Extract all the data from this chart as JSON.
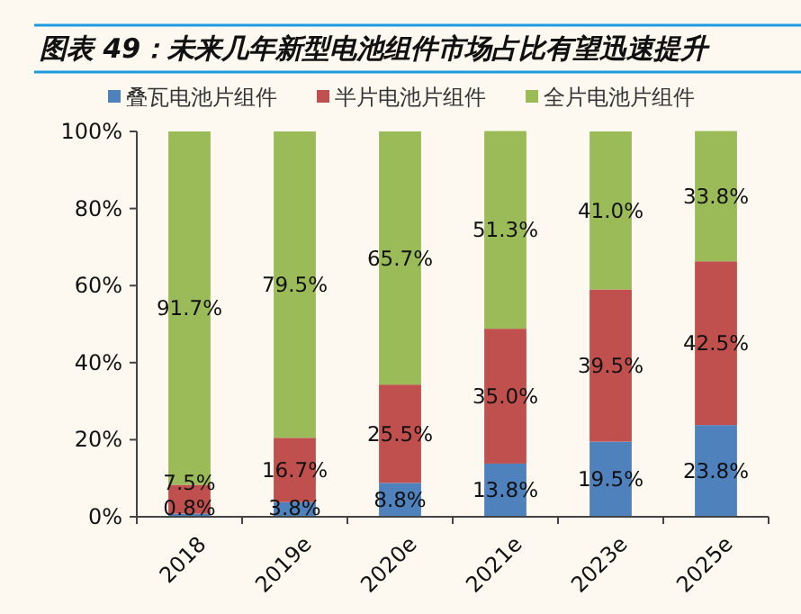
{
  "chart_data": {
    "type": "bar",
    "stacked": true,
    "title": "图表 49：未来几年新型电池组件市场占比有望迅速提升",
    "categories": [
      "2018",
      "2019e",
      "2020e",
      "2021e",
      "2023e",
      "2025e"
    ],
    "series": [
      {
        "name": "叠瓦电池片组件",
        "color": "#4f81bd",
        "values": [
          0.8,
          3.8,
          8.8,
          13.8,
          19.5,
          23.8
        ],
        "value_labels": [
          "0.8%",
          "3.8%",
          "8.8%",
          "13.8%",
          "19.5%",
          "23.8%"
        ]
      },
      {
        "name": "半片电池片组件",
        "color": "#c0504d",
        "values": [
          7.5,
          16.7,
          25.5,
          35.0,
          39.5,
          42.5
        ],
        "value_labels": [
          "7.5%",
          "16.7%",
          "25.5%",
          "35.0%",
          "39.5%",
          "42.5%"
        ]
      },
      {
        "name": "全片电池片组件",
        "color": "#9bbb59",
        "values": [
          91.7,
          79.5,
          65.7,
          51.3,
          41.0,
          33.8
        ],
        "value_labels": [
          "91.7%",
          "79.5%",
          "65.7%",
          "51.3%",
          "41.0%",
          "33.8%"
        ]
      }
    ],
    "ylim": [
      0,
      100
    ],
    "yticks": [
      {
        "value": 0,
        "label": "0%"
      },
      {
        "value": 20,
        "label": "20%"
      },
      {
        "value": 40,
        "label": "40%"
      },
      {
        "value": 60,
        "label": "60%"
      },
      {
        "value": 80,
        "label": "80%"
      },
      {
        "value": 100,
        "label": "100%"
      }
    ],
    "legend": "top",
    "grid": false
  }
}
